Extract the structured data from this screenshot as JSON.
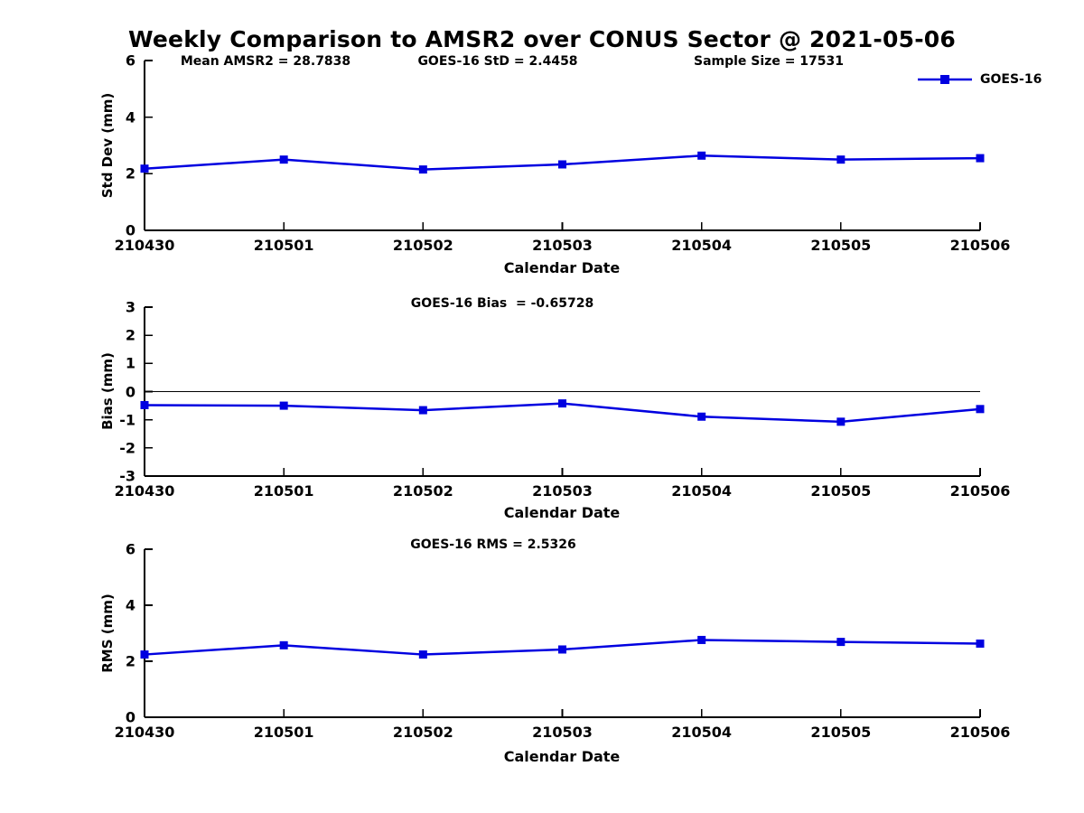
{
  "figure": {
    "title": "Weekly Comparison to AMSR2 over CONUS Sector @ 2021-05-06",
    "legend_label": "GOES-16",
    "series_color": "#0000e0",
    "axis_color": "#000000"
  },
  "chart_data": [
    {
      "id": "std-dev",
      "type": "line",
      "annotations": [
        "Mean AMSR2 = 28.7838",
        "GOES-16 StD = 2.4458",
        "Sample Size = 17531"
      ],
      "x": [
        "210430",
        "210501",
        "210502",
        "210503",
        "210504",
        "210505",
        "210506"
      ],
      "series": [
        {
          "name": "GOES-16",
          "values": [
            2.18,
            2.5,
            2.15,
            2.33,
            2.64,
            2.5,
            2.55
          ]
        }
      ],
      "xlabel": "Calendar Date",
      "ylabel": "Std Dev (mm)",
      "ylim": [
        0,
        6
      ],
      "yticks": [
        0,
        2,
        4,
        6
      ],
      "zero_line": false,
      "legend": {
        "label": "GOES-16",
        "position": "top-right",
        "marker": "filled-square"
      }
    },
    {
      "id": "bias",
      "type": "line",
      "annotations": [
        "GOES-16 Bias  = -0.65728"
      ],
      "x": [
        "210430",
        "210501",
        "210502",
        "210503",
        "210504",
        "210505",
        "210506"
      ],
      "series": [
        {
          "name": "GOES-16",
          "values": [
            -0.48,
            -0.5,
            -0.66,
            -0.42,
            -0.89,
            -1.07,
            -0.62
          ]
        }
      ],
      "xlabel": "Calendar Date",
      "ylabel": "Bias (mm)",
      "ylim": [
        -3,
        3
      ],
      "yticks": [
        -3,
        -2,
        -1,
        0,
        1,
        2,
        3
      ],
      "zero_line": true
    },
    {
      "id": "rms",
      "type": "line",
      "annotations": [
        "GOES-16 RMS = 2.5326"
      ],
      "x": [
        "210430",
        "210501",
        "210502",
        "210503",
        "210504",
        "210505",
        "210506"
      ],
      "series": [
        {
          "name": "GOES-16",
          "values": [
            2.24,
            2.57,
            2.24,
            2.42,
            2.76,
            2.69,
            2.63
          ]
        }
      ],
      "xlabel": "Calendar Date",
      "ylabel": "RMS (mm)",
      "ylim": [
        0,
        6
      ],
      "yticks": [
        0,
        2,
        4,
        6
      ],
      "zero_line": false
    }
  ]
}
